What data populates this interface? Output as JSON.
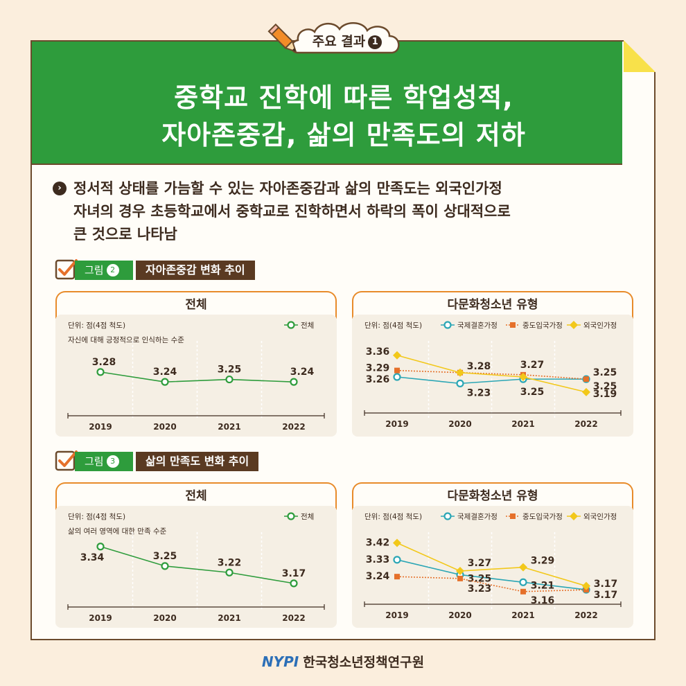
{
  "header": {
    "badge_label": "주요 결과",
    "badge_number": "1",
    "title_line1": "중학교 진학에 따른 학업성적,",
    "title_line2": "자아존중감, 삶의 만족도의 저하"
  },
  "summary": {
    "line1": "정서적 상태를 가늠할 수 있는 자아존중감과 삶의 만족도는 외국인가정",
    "line2": "자녀의 경우 초등학교에서 중학교로 진학하면서 하락의 폭이 상대적으로",
    "line3": "큰 것으로 나타남"
  },
  "figures": [
    {
      "tag": "그림",
      "number": "2",
      "title": "자아존중감 변화 추이"
    },
    {
      "tag": "그림",
      "number": "3",
      "title": "삶의 만족도 변화 추이"
    }
  ],
  "colors": {
    "green": "#2e9c3c",
    "teal": "#2ba6b5",
    "orange": "#e5702a",
    "yellow": "#f2c81a",
    "brown": "#5a3a22"
  },
  "chart_data": [
    {
      "type": "line",
      "panel_title": "전체",
      "unit": "단위: 점(4점 척도)",
      "note": "자신에 대해 긍정적으로 인식하는 수준",
      "x": [
        "2019",
        "2020",
        "2021",
        "2022"
      ],
      "series": [
        {
          "name": "전체",
          "values": [
            3.28,
            3.24,
            3.25,
            3.24
          ],
          "color": "#2e9c3c",
          "marker": "circle"
        }
      ],
      "ylim": [
        3.12,
        3.4
      ]
    },
    {
      "type": "line",
      "panel_title": "다문화청소년 유형",
      "unit": "단위: 점(4점 척도)",
      "note": "",
      "x": [
        "2019",
        "2020",
        "2021",
        "2022"
      ],
      "series": [
        {
          "name": "국제결혼가정",
          "values": [
            3.26,
            3.23,
            3.25,
            3.25
          ],
          "color": "#2ba6b5",
          "marker": "circle"
        },
        {
          "name": "중도입국가정",
          "values": [
            3.29,
            3.28,
            3.27,
            3.25
          ],
          "color": "#e5702a",
          "marker": "square"
        },
        {
          "name": "외국인가정",
          "values": [
            3.36,
            3.28,
            3.26,
            3.19
          ],
          "color": "#f2c81a",
          "marker": "diamond"
        }
      ],
      "ylim": [
        3.1,
        3.42
      ]
    },
    {
      "type": "line",
      "panel_title": "전체",
      "unit": "단위: 점(4점 척도)",
      "note": "삶의 여러 영역에 대한 만족 수준",
      "x": [
        "2019",
        "2020",
        "2021",
        "2022"
      ],
      "series": [
        {
          "name": "전체",
          "values": [
            3.34,
            3.25,
            3.22,
            3.17
          ],
          "color": "#2e9c3c",
          "marker": "circle"
        }
      ],
      "ylim": [
        3.08,
        3.4
      ]
    },
    {
      "type": "line",
      "panel_title": "다문화청소년 유형",
      "unit": "단위: 점(4점 척도)",
      "note": "",
      "x": [
        "2019",
        "2020",
        "2021",
        "2022"
      ],
      "series": [
        {
          "name": "국제결혼가정",
          "values": [
            3.33,
            3.25,
            3.21,
            3.17
          ],
          "color": "#2ba6b5",
          "marker": "circle"
        },
        {
          "name": "중도입국가정",
          "values": [
            3.24,
            3.23,
            3.16,
            3.17
          ],
          "color": "#e5702a",
          "marker": "square"
        },
        {
          "name": "외국인가정",
          "values": [
            3.42,
            3.27,
            3.29,
            3.19
          ],
          "color": "#f2c81a",
          "marker": "diamond"
        }
      ],
      "ylim": [
        3.1,
        3.47
      ]
    }
  ],
  "footer": {
    "logo": "NYPI",
    "org": "한국청소년정책연구원"
  }
}
